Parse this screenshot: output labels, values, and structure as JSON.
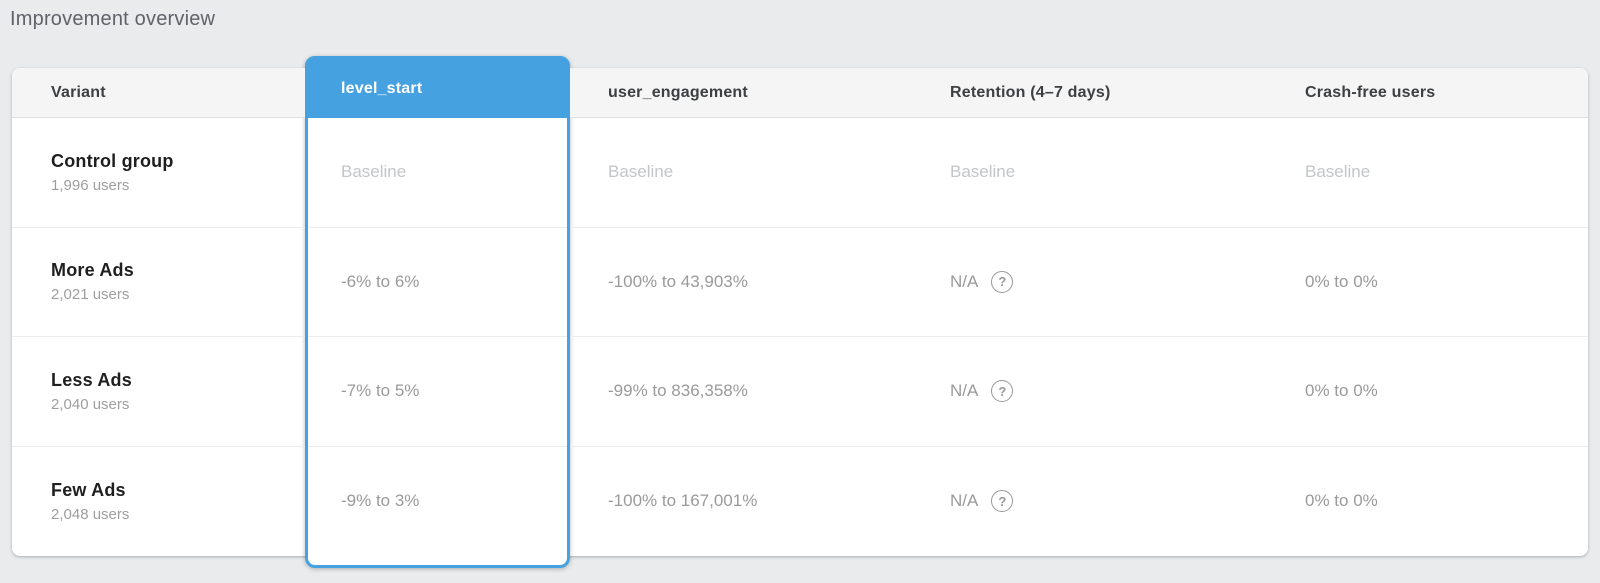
{
  "page": {
    "title": "Improvement overview"
  },
  "colors": {
    "accent_blue": "#45A1E0",
    "page_background": "#E9EBED",
    "header_background": "#F5F5F5",
    "baseline_text": "#C2C6C9",
    "value_text": "#9A9A9A"
  },
  "table": {
    "help_icon": "?",
    "columns": [
      {
        "id": "variant",
        "label": "Variant",
        "selected": false
      },
      {
        "id": "level_start",
        "label": "level_start",
        "selected": true
      },
      {
        "id": "user_engagement",
        "label": "user_engagement",
        "selected": false
      },
      {
        "id": "retention",
        "label": "Retention (4–7 days)",
        "selected": false
      },
      {
        "id": "crash_free",
        "label": "Crash-free users",
        "selected": false
      }
    ],
    "rows": [
      {
        "variant": "Control group",
        "users": "1,996 users",
        "level_start": "Baseline",
        "user_engagement": "Baseline",
        "retention": "Baseline",
        "crash_free": "Baseline",
        "is_baseline": true
      },
      {
        "variant": "More Ads",
        "users": "2,021 users",
        "level_start": "-6% to 6%",
        "user_engagement": "-100% to 43,903%",
        "retention": "N/A",
        "crash_free": "0% to 0%",
        "is_baseline": false
      },
      {
        "variant": "Less Ads",
        "users": "2,040 users",
        "level_start": "-7% to 5%",
        "user_engagement": "-99% to 836,358%",
        "retention": "N/A",
        "crash_free": "0% to 0%",
        "is_baseline": false
      },
      {
        "variant": "Few Ads",
        "users": "2,048 users",
        "level_start": "-9% to 3%",
        "user_engagement": "-100% to 167,001%",
        "retention": "N/A",
        "crash_free": "0% to 0%",
        "is_baseline": false
      }
    ]
  }
}
